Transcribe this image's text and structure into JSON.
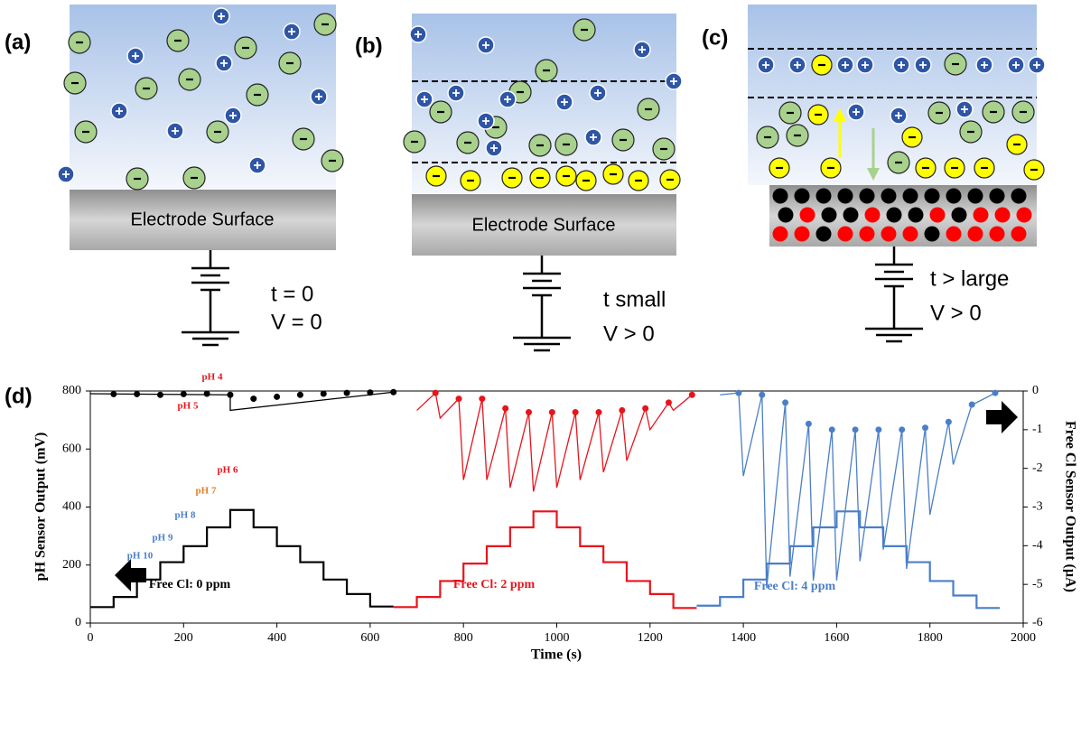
{
  "panels": [
    {
      "label": "(a)",
      "electrode": "Electrode Surface",
      "conditions": [
        "t = 0",
        "V = 0"
      ]
    },
    {
      "label": "(b)",
      "electrode": "Electrode Surface",
      "conditions": [
        "t small",
        "V > 0"
      ]
    },
    {
      "label": "(c)",
      "conditions": [
        "t > large",
        "V > 0"
      ]
    }
  ],
  "chart_data": {
    "type": "line",
    "panel_label": "(d)",
    "xlabel": "Time (s)",
    "ylabel": "pH Sensor Output (mV)",
    "y2label": "Free Cl Sensor Output (µA)",
    "xlim": [
      0,
      2000
    ],
    "xticks": [
      0,
      200,
      400,
      600,
      800,
      1000,
      1200,
      1400,
      1600,
      1800,
      2000
    ],
    "ylim": [
      0,
      800
    ],
    "yticks": [
      0,
      200,
      400,
      600,
      800
    ],
    "y2lim": [
      -6,
      0
    ],
    "y2ticks": [
      0,
      -1,
      -2,
      -3,
      -4,
      -5,
      -6
    ],
    "series": [
      {
        "type": "line",
        "color": "#000000",
        "x": [
          0,
          50,
          50,
          100,
          100,
          150,
          150,
          200,
          200,
          250,
          250,
          300,
          300,
          350,
          350,
          400,
          400,
          450,
          450,
          500,
          500,
          550,
          550,
          600,
          600,
          650
        ],
        "values": [
          55,
          55,
          90,
          90,
          150,
          150,
          210,
          210,
          265,
          265,
          330,
          330,
          390,
          390,
          330,
          330,
          265,
          265,
          210,
          210,
          150,
          150,
          100,
          100,
          57,
          57
        ]
      },
      {
        "type": "line",
        "color": "#e8141c",
        "x": [
          650,
          700,
          700,
          750,
          750,
          800,
          800,
          850,
          850,
          900,
          900,
          950,
          950,
          1000,
          1000,
          1050,
          1050,
          1100,
          1100,
          1150,
          1150,
          1200,
          1200,
          1250,
          1250,
          1300
        ],
        "values": [
          55,
          55,
          90,
          90,
          145,
          145,
          205,
          205,
          265,
          265,
          330,
          330,
          385,
          385,
          330,
          330,
          265,
          265,
          210,
          210,
          145,
          145,
          100,
          100,
          52,
          52
        ]
      },
      {
        "type": "line",
        "color": "#4a7fc8",
        "x": [
          1300,
          1350,
          1350,
          1400,
          1400,
          1450,
          1450,
          1500,
          1500,
          1550,
          1550,
          1600,
          1600,
          1650,
          1650,
          1700,
          1700,
          1750,
          1750,
          1800,
          1800,
          1850,
          1850,
          1900,
          1900,
          1950
        ],
        "values": [
          60,
          60,
          90,
          90,
          150,
          150,
          205,
          205,
          265,
          265,
          330,
          330,
          385,
          385,
          330,
          330,
          265,
          265,
          210,
          210,
          145,
          145,
          95,
          95,
          52,
          52
        ]
      },
      {
        "type": "line",
        "axis": "y2",
        "color": "#000000",
        "x": [
          0,
          300,
          300,
          650
        ],
        "values": [
          -0.07,
          -0.1,
          -0.5,
          -0.03
        ]
      },
      {
        "type": "line",
        "axis": "y2",
        "color": "#e8141c",
        "x": [
          700,
          740,
          750,
          790,
          800,
          840,
          850,
          890,
          900,
          940,
          950,
          990,
          1000,
          1040,
          1050,
          1090,
          1100,
          1140,
          1150,
          1190,
          1200,
          1240,
          1250,
          1290
        ],
        "values": [
          -0.5,
          -0.05,
          -0.7,
          -0.2,
          -2.3,
          -0.2,
          -2.3,
          -0.45,
          -2.5,
          -0.55,
          -2.6,
          -0.55,
          -2.5,
          -0.55,
          -2.3,
          -0.55,
          -2.1,
          -0.5,
          -1.8,
          -0.45,
          -1.0,
          -0.3,
          -0.5,
          -0.1
        ]
      },
      {
        "type": "line",
        "axis": "y2",
        "color": "#4a7fc8",
        "x": [
          1350,
          1390,
          1400,
          1440,
          1450,
          1490,
          1500,
          1540,
          1550,
          1590,
          1600,
          1640,
          1650,
          1690,
          1700,
          1740,
          1750,
          1790,
          1800,
          1840,
          1850,
          1890,
          1900,
          1940
        ],
        "values": [
          -0.1,
          -0.05,
          -2.2,
          -0.1,
          -5.1,
          -0.3,
          -4.8,
          -0.85,
          -4.9,
          -1.0,
          -4.9,
          -1.0,
          -4.4,
          -1.0,
          -4.1,
          -1.0,
          -4.6,
          -0.95,
          -3.2,
          -0.8,
          -1.9,
          -0.35,
          -0.3,
          -0.05
        ]
      },
      {
        "type": "scatter",
        "axis": "y2",
        "color": "#000000",
        "x": [
          50,
          100,
          150,
          200,
          250,
          300,
          350,
          400,
          450,
          500,
          550,
          600,
          650
        ],
        "values": [
          -0.08,
          -0.08,
          -0.1,
          -0.08,
          -0.07,
          -0.1,
          -0.2,
          -0.15,
          -0.1,
          -0.07,
          -0.05,
          -0.04,
          -0.03
        ]
      },
      {
        "type": "scatter",
        "axis": "y2",
        "color": "#e8141c",
        "x": [
          740,
          790,
          840,
          890,
          940,
          990,
          1040,
          1090,
          1140,
          1190,
          1240,
          1290
        ],
        "values": [
          -0.05,
          -0.2,
          -0.2,
          -0.45,
          -0.55,
          -0.55,
          -0.55,
          -0.55,
          -0.5,
          -0.45,
          -0.3,
          -0.1
        ]
      },
      {
        "type": "scatter",
        "axis": "y2",
        "color": "#4a7fc8",
        "x": [
          1390,
          1440,
          1490,
          1540,
          1590,
          1640,
          1690,
          1740,
          1790,
          1840,
          1890,
          1940
        ],
        "values": [
          -0.05,
          -0.1,
          -0.3,
          -0.85,
          -1.0,
          -1.0,
          -1.0,
          -1.0,
          -0.95,
          -0.8,
          -0.35,
          -0.05
        ]
      }
    ],
    "annotations": [
      {
        "text": "pH 4",
        "color": "#e8141c"
      },
      {
        "text": "pH 5",
        "color": "#e8141c"
      },
      {
        "text": "pH 6",
        "color": "#e8141c"
      },
      {
        "text": "pH 7",
        "color": "#e67e22"
      },
      {
        "text": "pH 8",
        "color": "#4a7fc8"
      },
      {
        "text": "pH 9",
        "color": "#4a7fc8"
      },
      {
        "text": "pH 10",
        "color": "#4a7fc8"
      },
      {
        "text": "Free Cl: 0 ppm",
        "color": "#000000"
      },
      {
        "text": "Free Cl: 2 ppm",
        "color": "#e8141c"
      },
      {
        "text": "Free Cl: 4 ppm",
        "color": "#4a7fc8"
      }
    ]
  }
}
